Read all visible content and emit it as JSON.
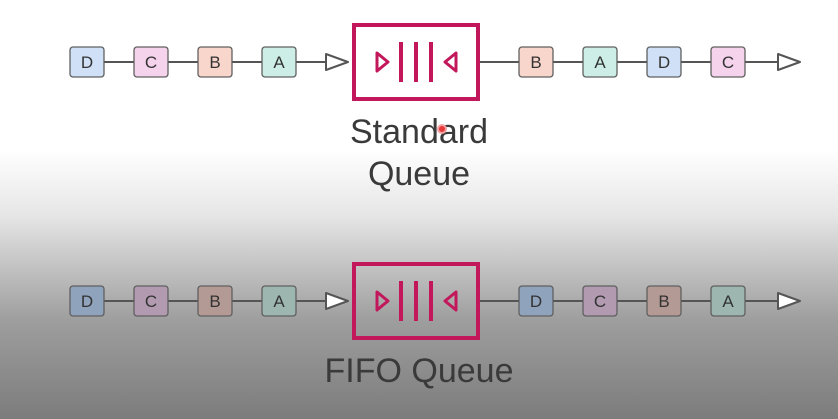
{
  "colors": {
    "line": "#555555",
    "queue_stroke": "#c2185b",
    "box_stroke": "#606060",
    "box_fill": {
      "A": "#cdeee6",
      "B": "#f8d6cc",
      "C": "#f6d3ec",
      "D": "#cfe0f7"
    },
    "box_fill_shaded": {
      "A": "#9db7b0",
      "B": "#b49a94",
      "C": "#b29bb1",
      "D": "#8fa3bc"
    }
  },
  "standard_queue": {
    "title_line1": "Standard",
    "title_line2": "Queue",
    "input": [
      "D",
      "C",
      "B",
      "A"
    ],
    "output": [
      "B",
      "A",
      "D",
      "C"
    ]
  },
  "fifo_queue": {
    "title": "FIFO Queue",
    "input": [
      "D",
      "C",
      "B",
      "A"
    ],
    "output": [
      "D",
      "C",
      "B",
      "A"
    ]
  }
}
